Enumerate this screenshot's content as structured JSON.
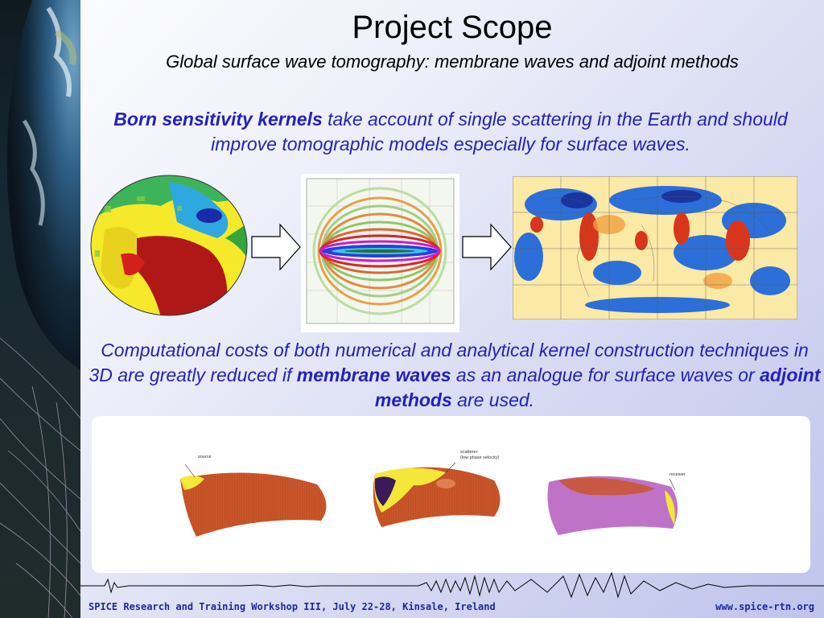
{
  "slide": {
    "title": "Project Scope",
    "subtitle": "Global surface wave tomography: membrane waves and adjoint methods",
    "para1": {
      "bold": "Born sensitivity kernels",
      "rest": " take account of single scattering in the Earth and should improve tomographic models especially for surface waves."
    },
    "para2": {
      "part1": "Computational costs of both numerical and analytical kernel construction techniques in 3D are greatly reduced if ",
      "bold1": "membrane waves",
      "part2": " as an analogue for surface waves or ",
      "bold2": "adjoint methods",
      "part3": " are used."
    },
    "figures": {
      "label_source": "source",
      "label_scatterer": "scatterer",
      "label_scatterer_sub": "(low phase velocity)",
      "label_receiver": "receiver"
    },
    "footer": {
      "left": "SPICE Research and Training Workshop III, July 22-28, Kinsale, Ireland",
      "right": "www.spice-rtn.org"
    },
    "colors": {
      "text_blue": "#2222bb",
      "footer_blue": "#1a2aa0"
    }
  }
}
